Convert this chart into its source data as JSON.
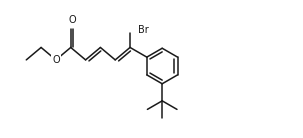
{
  "background_color": "#ffffff",
  "line_color": "#1a1a1a",
  "line_width": 1.1,
  "font_size_atom": 7.0,
  "font_size_br": 7.0,
  "figsize": [
    3.03,
    1.38
  ],
  "dpi": 100,
  "xlim": [
    0,
    12
  ],
  "ylim": [
    -2.8,
    3.2
  ]
}
